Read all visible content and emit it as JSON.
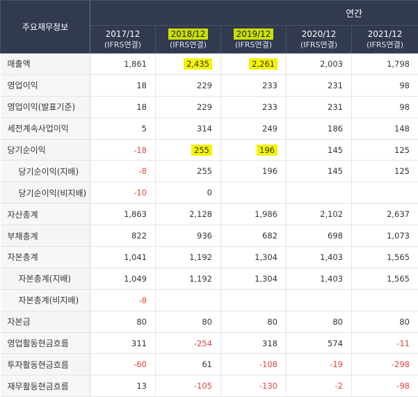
{
  "header": {
    "corner_label": "주요재무정보",
    "group_label": "연간",
    "years": [
      {
        "label": "2017/12",
        "sub": "(IFRS연결)",
        "highlight": false
      },
      {
        "label": "2018/12",
        "sub": "(IFRS연결)",
        "highlight": true
      },
      {
        "label": "2019/12",
        "sub": "(IFRS연결)",
        "highlight": true
      },
      {
        "label": "2020/12",
        "sub": "(IFRS연결)",
        "highlight": false
      },
      {
        "label": "2021/12",
        "sub": "(IFRS연결)",
        "highlight": false
      }
    ]
  },
  "rows": [
    {
      "label": "매출액",
      "indent": false,
      "values": [
        "1,861",
        "2,435",
        "2,261",
        "2,003",
        "1,798"
      ],
      "highlight": [
        false,
        true,
        true,
        false,
        false
      ]
    },
    {
      "label": "영업이익",
      "indent": false,
      "values": [
        "18",
        "229",
        "233",
        "231",
        "98"
      ],
      "highlight": [
        false,
        false,
        false,
        false,
        false
      ]
    },
    {
      "label": "영업이익(발표기준)",
      "indent": false,
      "values": [
        "18",
        "229",
        "233",
        "231",
        "98"
      ],
      "highlight": [
        false,
        false,
        false,
        false,
        false
      ]
    },
    {
      "label": "세전계속사업이익",
      "indent": false,
      "values": [
        "5",
        "314",
        "249",
        "186",
        "148"
      ],
      "highlight": [
        false,
        false,
        false,
        false,
        false
      ]
    },
    {
      "label": "당기순이익",
      "indent": false,
      "values": [
        "-18",
        "255",
        "196",
        "145",
        "125"
      ],
      "highlight": [
        false,
        true,
        true,
        false,
        false
      ]
    },
    {
      "label": "당기순이익(지배)",
      "indent": true,
      "values": [
        "-8",
        "255",
        "196",
        "145",
        "125"
      ],
      "highlight": [
        false,
        false,
        false,
        false,
        false
      ]
    },
    {
      "label": "당기순이익(비지배)",
      "indent": true,
      "values": [
        "-10",
        "0",
        "",
        "",
        ""
      ],
      "highlight": [
        false,
        false,
        false,
        false,
        false
      ]
    },
    {
      "label": "자산총계",
      "indent": false,
      "values": [
        "1,863",
        "2,128",
        "1,986",
        "2,102",
        "2,637"
      ],
      "highlight": [
        false,
        false,
        false,
        false,
        false
      ]
    },
    {
      "label": "부채총계",
      "indent": false,
      "values": [
        "822",
        "936",
        "682",
        "698",
        "1,073"
      ],
      "highlight": [
        false,
        false,
        false,
        false,
        false
      ]
    },
    {
      "label": "자본총계",
      "indent": false,
      "values": [
        "1,041",
        "1,192",
        "1,304",
        "1,403",
        "1,565"
      ],
      "highlight": [
        false,
        false,
        false,
        false,
        false
      ]
    },
    {
      "label": "자본총계(지배)",
      "indent": true,
      "values": [
        "1,049",
        "1,192",
        "1,304",
        "1,403",
        "1,565"
      ],
      "highlight": [
        false,
        false,
        false,
        false,
        false
      ]
    },
    {
      "label": "자본총계(비지배)",
      "indent": true,
      "values": [
        "-8",
        "",
        "",
        "",
        ""
      ],
      "highlight": [
        false,
        false,
        false,
        false,
        false
      ]
    },
    {
      "label": "자본금",
      "indent": false,
      "values": [
        "80",
        "80",
        "80",
        "80",
        "80"
      ],
      "highlight": [
        false,
        false,
        false,
        false,
        false
      ]
    },
    {
      "label": "영업활동현금흐름",
      "indent": false,
      "values": [
        "311",
        "-254",
        "318",
        "574",
        "-11"
      ],
      "highlight": [
        false,
        false,
        false,
        false,
        false
      ]
    },
    {
      "label": "투자활동현금흐름",
      "indent": false,
      "values": [
        "-60",
        "61",
        "-108",
        "-19",
        "-298"
      ],
      "highlight": [
        false,
        false,
        false,
        false,
        false
      ]
    },
    {
      "label": "재무활동현금흐름",
      "indent": false,
      "values": [
        "13",
        "-105",
        "-130",
        "-2",
        "-98"
      ],
      "highlight": [
        false,
        false,
        false,
        false,
        false
      ]
    }
  ],
  "colors": {
    "header_bg": "#323a4f",
    "negative": "#e0443e",
    "highlight": "#f4f400",
    "header_highlight": "#c9e000"
  }
}
